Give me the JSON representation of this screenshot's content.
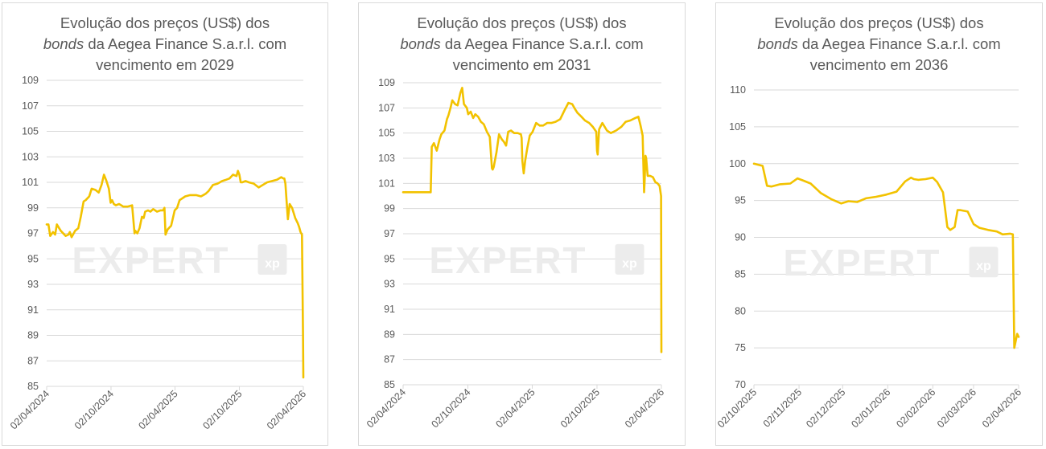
{
  "colors": {
    "line": "#F2C200",
    "grid": "#d9d9d9",
    "axis_text": "#595959",
    "watermark": "#ececec"
  },
  "watermark": {
    "text": "EXPERT",
    "logo": "xp"
  },
  "chart_data": [
    {
      "type": "line",
      "title_line1": "Evolução dos preços (US$) dos",
      "title_italic": "bonds",
      "title_line2_rest": " da Aegea Finance S.a.r.l. com",
      "title_line3": "vencimento em 2029",
      "ylim": [
        85,
        109
      ],
      "yticks": [
        "85",
        "87",
        "89",
        "91",
        "93",
        "95",
        "97",
        "99",
        "101",
        "103",
        "105",
        "107",
        "109"
      ],
      "xlim": [
        "2024-04-02",
        "2026-04-02"
      ],
      "xticks": [
        {
          "date": "2024-04-02",
          "label": "02/04/2024"
        },
        {
          "date": "2024-10-02",
          "label": "02/10/2024"
        },
        {
          "date": "2025-04-02",
          "label": "02/04/2025"
        },
        {
          "date": "2025-10-02",
          "label": "02/10/2025"
        },
        {
          "date": "2026-04-02",
          "label": "02/04/2026"
        }
      ],
      "grid": true,
      "series": [
        {
          "x": [
            "2024-04-02",
            "2024-04-07",
            "2024-04-12",
            "2024-04-20",
            "2024-04-26",
            "2024-05-01",
            "2024-05-12",
            "2024-05-26",
            "2024-06-03",
            "2024-06-07",
            "2024-06-12",
            "2024-06-22",
            "2024-07-01",
            "2024-07-08",
            "2024-07-16",
            "2024-07-22",
            "2024-08-01",
            "2024-08-08",
            "2024-08-19",
            "2024-08-28",
            "2024-09-05",
            "2024-09-12",
            "2024-09-19",
            "2024-09-26",
            "2024-10-01",
            "2024-10-05",
            "2024-10-10",
            "2024-10-16",
            "2024-10-25",
            "2024-11-06",
            "2024-11-18",
            "2024-12-01",
            "2024-12-08",
            "2024-12-10",
            "2024-12-16",
            "2024-12-22",
            "2024-12-29",
            "2025-01-03",
            "2025-01-07",
            "2025-01-15",
            "2025-01-22",
            "2025-01-30",
            "2025-02-10",
            "2025-02-20",
            "2025-02-27",
            "2025-03-03",
            "2025-03-06",
            "2025-03-12",
            "2025-03-22",
            "2025-04-01",
            "2025-04-08",
            "2025-04-15",
            "2025-05-01",
            "2025-05-15",
            "2025-06-01",
            "2025-06-15",
            "2025-06-28",
            "2025-07-06",
            "2025-07-19",
            "2025-08-01",
            "2025-08-14",
            "2025-08-25",
            "2025-09-04",
            "2025-09-14",
            "2025-09-24",
            "2025-09-28",
            "2025-10-02",
            "2025-10-06",
            "2025-10-10",
            "2025-10-20",
            "2025-10-29",
            "2025-11-12",
            "2025-11-26",
            "2025-12-08",
            "2025-12-20",
            "2026-01-03",
            "2026-01-17",
            "2026-01-29",
            "2026-02-04",
            "2026-02-07",
            "2026-02-10",
            "2026-02-13",
            "2026-02-17",
            "2026-02-22",
            "2026-03-01",
            "2026-03-10",
            "2026-03-17",
            "2026-03-21",
            "2026-03-25",
            "2026-03-29",
            "2026-04-01",
            "2026-04-02"
          ],
          "y": [
            97.7,
            97.7,
            96.8,
            97.1,
            96.9,
            97.7,
            97.2,
            96.8,
            96.9,
            97.1,
            96.7,
            97.2,
            97.4,
            98.3,
            99.5,
            99.6,
            99.9,
            100.5,
            100.4,
            100.2,
            100.8,
            101.6,
            101.1,
            100.5,
            99.4,
            99.6,
            99.3,
            99.2,
            99.3,
            99.1,
            99.1,
            99.2,
            97.0,
            97.2,
            97.0,
            97.4,
            98.3,
            98.2,
            98.7,
            98.8,
            98.7,
            98.9,
            98.7,
            98.8,
            98.8,
            99.0,
            96.9,
            97.3,
            97.6,
            98.8,
            99.0,
            99.6,
            99.9,
            100.0,
            100.0,
            99.9,
            100.1,
            100.3,
            100.8,
            100.9,
            101.1,
            101.2,
            101.3,
            101.6,
            101.5,
            101.9,
            101.6,
            101.0,
            101.0,
            101.1,
            101.0,
            100.9,
            100.6,
            100.8,
            101.0,
            101.1,
            101.2,
            101.4,
            101.3,
            101.3,
            100.9,
            99.7,
            98.1,
            99.3,
            99.0,
            98.2,
            97.8,
            97.5,
            97.1,
            96.9,
            89.0,
            85.7
          ]
        }
      ]
    },
    {
      "type": "line",
      "title_line1": "Evolução dos preços (US$) dos",
      "title_italic": "bonds",
      "title_line2_rest": " da Aegea Finance S.a.r.l. com",
      "title_line3": "vencimento em 2031",
      "ylim": [
        85,
        109
      ],
      "yticks": [
        "85",
        "87",
        "89",
        "91",
        "93",
        "95",
        "97",
        "99",
        "101",
        "103",
        "105",
        "107",
        "109"
      ],
      "xlim": [
        "2024-04-02",
        "2026-04-02"
      ],
      "xticks": [
        {
          "date": "2024-04-02",
          "label": "02/04/2024"
        },
        {
          "date": "2024-10-02",
          "label": "02/10/2024"
        },
        {
          "date": "2025-04-02",
          "label": "02/04/2025"
        },
        {
          "date": "2025-10-02",
          "label": "02/10/2025"
        },
        {
          "date": "2026-04-02",
          "label": "02/04/2026"
        }
      ],
      "grid": true,
      "series": [
        {
          "x": [
            "2024-04-02",
            "2024-05-12",
            "2024-06-19",
            "2024-06-22",
            "2024-06-28",
            "2024-07-06",
            "2024-07-14",
            "2024-07-19",
            "2024-07-28",
            "2024-08-04",
            "2024-08-08",
            "2024-08-14",
            "2024-08-19",
            "2024-08-27",
            "2024-09-03",
            "2024-09-11",
            "2024-09-16",
            "2024-09-21",
            "2024-09-29",
            "2024-10-03",
            "2024-10-10",
            "2024-10-17",
            "2024-10-23",
            "2024-10-31",
            "2024-11-08",
            "2024-11-16",
            "2024-11-25",
            "2024-12-03",
            "2024-12-09",
            "2024-12-11",
            "2024-12-14",
            "2024-12-22",
            "2024-12-29",
            "2025-01-06",
            "2025-01-12",
            "2025-01-18",
            "2025-01-24",
            "2025-02-01",
            "2025-02-10",
            "2025-02-20",
            "2025-03-01",
            "2025-03-03",
            "2025-03-05",
            "2025-03-09",
            "2025-03-13",
            "2025-03-19",
            "2025-03-26",
            "2025-04-03",
            "2025-04-13",
            "2025-04-23",
            "2025-05-03",
            "2025-05-14",
            "2025-05-26",
            "2025-06-07",
            "2025-06-20",
            "2025-07-02",
            "2025-07-13",
            "2025-07-24",
            "2025-08-01",
            "2025-08-08",
            "2025-08-19",
            "2025-08-29",
            "2025-09-10",
            "2025-09-20",
            "2025-09-30",
            "2025-10-02",
            "2025-10-04",
            "2025-10-08",
            "2025-10-17",
            "2025-10-30",
            "2025-11-10",
            "2025-11-25",
            "2025-12-10",
            "2025-12-22",
            "2026-01-04",
            "2026-01-18",
            "2026-01-27",
            "2026-02-02",
            "2026-02-08",
            "2026-02-12",
            "2026-02-14",
            "2026-02-16",
            "2026-02-18",
            "2026-02-22",
            "2026-03-01",
            "2026-03-09",
            "2026-03-16",
            "2026-03-22",
            "2026-03-28",
            "2026-04-01",
            "2026-04-02"
          ],
          "y": [
            100.3,
            100.3,
            100.3,
            103.9,
            104.2,
            103.6,
            104.5,
            104.9,
            105.2,
            106.1,
            106.4,
            107.0,
            107.6,
            107.3,
            107.2,
            108.2,
            108.6,
            107.3,
            107.0,
            106.5,
            106.7,
            106.2,
            106.5,
            106.3,
            105.9,
            105.7,
            105.1,
            104.7,
            102.2,
            102.1,
            102.3,
            103.5,
            104.9,
            104.5,
            104.3,
            104.0,
            105.1,
            105.2,
            105.0,
            105.0,
            104.9,
            104.6,
            102.8,
            101.8,
            102.8,
            103.8,
            104.8,
            105.1,
            105.8,
            105.6,
            105.6,
            105.8,
            105.8,
            105.9,
            106.1,
            106.8,
            107.4,
            107.3,
            106.9,
            106.6,
            106.3,
            106.0,
            105.8,
            105.5,
            105.1,
            103.6,
            103.3,
            105.3,
            105.8,
            105.2,
            105.0,
            105.2,
            105.5,
            105.9,
            106.0,
            106.2,
            106.3,
            105.6,
            104.8,
            100.3,
            101.4,
            103.2,
            103.0,
            101.6,
            101.6,
            101.5,
            101.1,
            101.0,
            100.8,
            100.0,
            87.6
          ]
        }
      ]
    },
    {
      "type": "line",
      "title_line1": "Evolução dos preços (US$) dos",
      "title_italic": "bonds",
      "title_line2_rest": " da Aegea Finance S.a.r.l. com",
      "title_line3": "vencimento em 2036",
      "ylim": [
        70,
        110
      ],
      "yticks": [
        "70",
        "75",
        "80",
        "85",
        "90",
        "95",
        "100",
        "105",
        "110"
      ],
      "xlim": [
        "2025-10-02",
        "2026-04-02"
      ],
      "xticks": [
        {
          "date": "2025-10-02",
          "label": "02/10/2025"
        },
        {
          "date": "2025-11-02",
          "label": "02/11/2025"
        },
        {
          "date": "2025-12-02",
          "label": "02/12/2025"
        },
        {
          "date": "2026-01-02",
          "label": "02/01/2026"
        },
        {
          "date": "2026-02-02",
          "label": "02/02/2026"
        },
        {
          "date": "2026-03-02",
          "label": "02/03/2026"
        },
        {
          "date": "2026-04-02",
          "label": "02/04/2026"
        }
      ],
      "grid": true,
      "series": [
        {
          "x": [
            "2025-10-02",
            "2025-10-08",
            "2025-10-11",
            "2025-10-14",
            "2025-10-20",
            "2025-10-27",
            "2025-11-01",
            "2025-11-05",
            "2025-11-10",
            "2025-11-17",
            "2025-11-24",
            "2025-12-01",
            "2025-12-06",
            "2025-12-12",
            "2025-12-18",
            "2025-12-25",
            "2026-01-01",
            "2026-01-08",
            "2026-01-14",
            "2026-01-18",
            "2026-01-20",
            "2026-01-23",
            "2026-01-28",
            "2026-02-02",
            "2026-02-05",
            "2026-02-09",
            "2026-02-12",
            "2026-02-14",
            "2026-02-17",
            "2026-02-19",
            "2026-02-21",
            "2026-02-26",
            "2026-03-02",
            "2026-03-06",
            "2026-03-12",
            "2026-03-18",
            "2026-03-22",
            "2026-03-27",
            "2026-03-29",
            "2026-03-30",
            "2026-04-01",
            "2026-04-02"
          ],
          "y": [
            100.0,
            99.7,
            97.0,
            96.9,
            97.2,
            97.3,
            98.0,
            97.7,
            97.3,
            96.0,
            95.2,
            94.6,
            94.9,
            94.8,
            95.3,
            95.5,
            95.8,
            96.2,
            97.6,
            98.1,
            97.9,
            97.8,
            97.9,
            98.1,
            97.5,
            96.1,
            91.4,
            91.0,
            91.4,
            93.7,
            93.7,
            93.5,
            91.8,
            91.3,
            91.0,
            90.8,
            90.4,
            90.5,
            90.4,
            75.0,
            76.9,
            76.5
          ]
        }
      ]
    }
  ]
}
